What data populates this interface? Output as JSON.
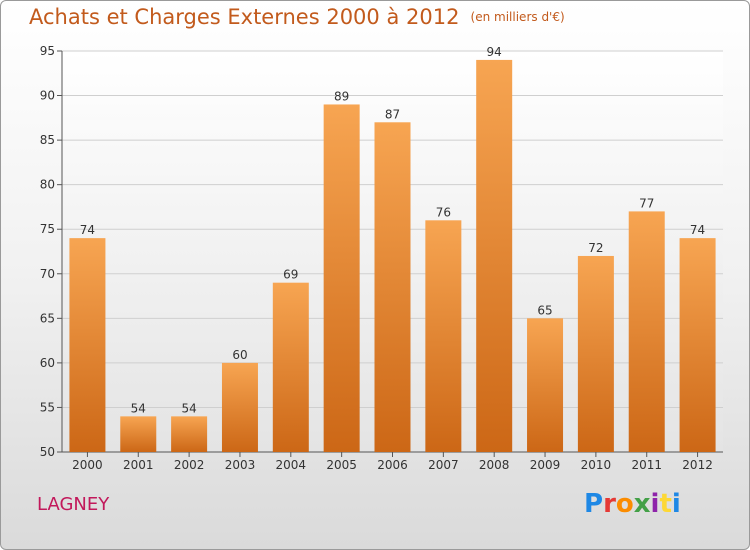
{
  "header": {
    "title": "Achats et Charges Externes 2000 à 2012",
    "unit": "(en milliers d'€)"
  },
  "footer": {
    "commune": "LAGNEY",
    "logo_letters": [
      "P",
      "r",
      "o",
      "x",
      "i",
      "t",
      "i"
    ],
    "logo_colors": [
      "#1e88e5",
      "#e53935",
      "#fb8c00",
      "#43a047",
      "#8e24aa",
      "#fdd835",
      "#1e88e5"
    ]
  },
  "colors": {
    "bar_top": "#f7a552",
    "bar_bottom": "#cc6716",
    "title": "#c25a1c",
    "commune": "#c2185b"
  },
  "chart_data": {
    "type": "bar",
    "categories": [
      "2000",
      "2001",
      "2002",
      "2003",
      "2004",
      "2005",
      "2006",
      "2007",
      "2008",
      "2009",
      "2010",
      "2011",
      "2012"
    ],
    "values": [
      74,
      54,
      54,
      60,
      69,
      89,
      87,
      76,
      94,
      65,
      72,
      77,
      74
    ],
    "ylim": [
      50,
      95
    ],
    "yticks": [
      50,
      55,
      60,
      65,
      70,
      75,
      80,
      85,
      90,
      95
    ],
    "grid": true
  }
}
